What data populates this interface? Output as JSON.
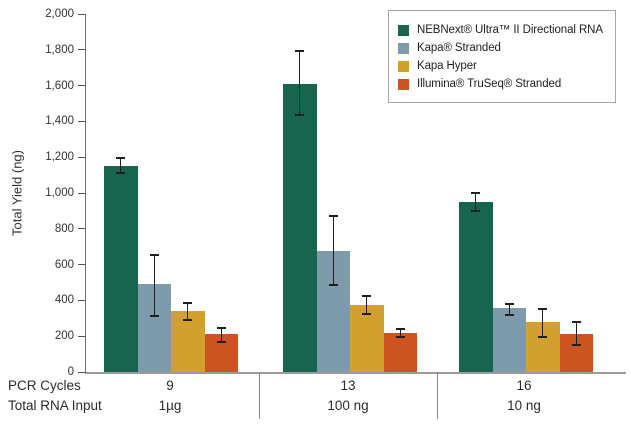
{
  "chart_data": {
    "type": "bar",
    "title": "",
    "ylabel": "Total Yield (ng)",
    "ylim": [
      0,
      2000
    ],
    "y_tick_step": 200,
    "y_tick_labels": [
      "0",
      "200",
      "400",
      "600",
      "800",
      "1,000",
      "1,200",
      "1,400",
      "1,600",
      "1,800",
      "2,000"
    ],
    "grid": false,
    "legend_position": "top-right",
    "x_row_labels": [
      "PCR Cycles",
      "Total RNA Input"
    ],
    "groups": [
      {
        "pcr_cycles": "9",
        "rna_input": "1µg"
      },
      {
        "pcr_cycles": "13",
        "rna_input": "100 ng"
      },
      {
        "pcr_cycles": "16",
        "rna_input": "10 ng"
      }
    ],
    "series": [
      {
        "name": "NEBNext® Ultra™ II Directional RNA",
        "color": "#17654F",
        "values": [
          1150,
          1610,
          950
        ],
        "err_low": [
          1105,
          1430,
          895
        ],
        "err_high": [
          1200,
          1800,
          1005
        ]
      },
      {
        "name": "Kapa® Stranded",
        "color": "#7E9BAC",
        "values": [
          490,
          675,
          355
        ],
        "err_low": [
          310,
          480,
          315
        ],
        "err_high": [
          660,
          875,
          385
        ]
      },
      {
        "name": "Kapa Hyper",
        "color": "#D2A02F",
        "values": [
          340,
          375,
          280
        ],
        "err_low": [
          285,
          320,
          190
        ],
        "err_high": [
          390,
          430,
          355
        ]
      },
      {
        "name": "Illumina® TruSeq® Stranded",
        "color": "#CC5420",
        "values": [
          210,
          220,
          215
        ],
        "err_low": [
          160,
          190,
          145
        ],
        "err_high": [
          250,
          245,
          285
        ]
      }
    ]
  }
}
